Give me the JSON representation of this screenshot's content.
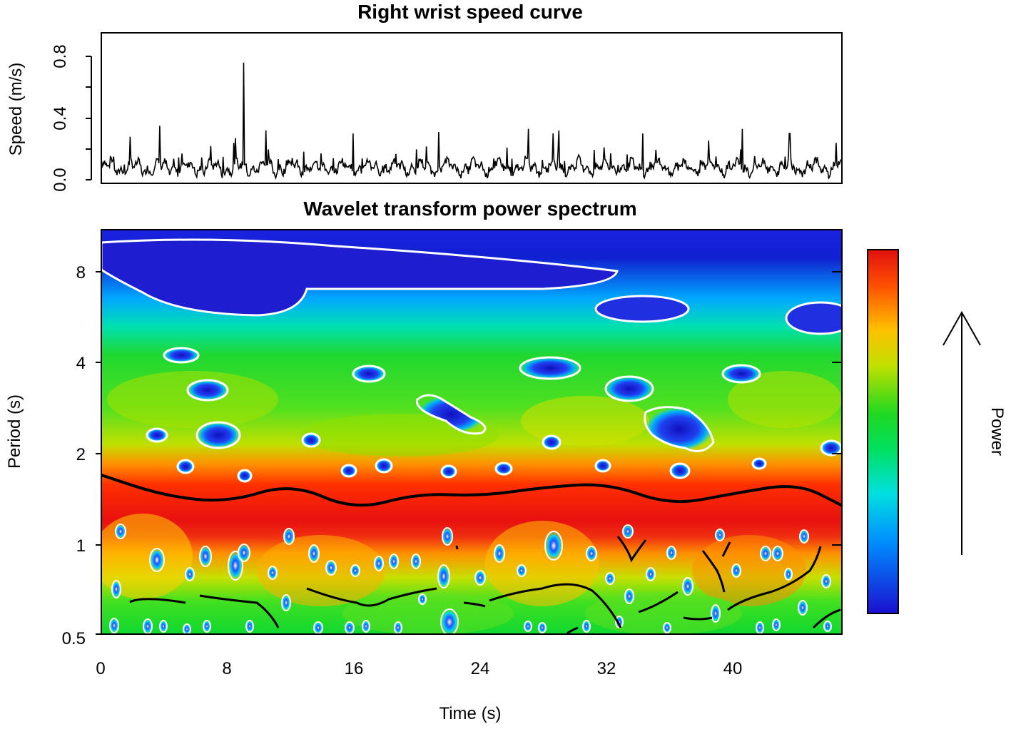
{
  "chart_data": [
    {
      "type": "line",
      "title": "Right wrist speed curve",
      "xlabel": "",
      "ylabel": "Speed (m/s)",
      "xlim": [
        0,
        46.8
      ],
      "ylim": [
        0,
        0.95
      ],
      "yticks": [
        "0.0",
        "0.4",
        "0.8"
      ],
      "series": [
        {
          "name": "",
          "values": {
            "baseline_mean": 0.08,
            "typical_peak_range": [
              0.12,
              0.3
            ],
            "spikes": [
              {
                "x": 3.7,
                "y": 0.35
              },
              {
                "x": 9.0,
                "y": 0.76
              },
              {
                "x": 10.4,
                "y": 0.32
              },
              {
                "x": 15.9,
                "y": 0.3
              },
              {
                "x": 21.3,
                "y": 0.31
              },
              {
                "x": 27.0,
                "y": 0.33
              },
              {
                "x": 28.9,
                "y": 0.32
              },
              {
                "x": 34.2,
                "y": 0.3
              },
              {
                "x": 40.5,
                "y": 0.33
              },
              {
                "x": 43.5,
                "y": 0.3
              }
            ]
          }
        }
      ]
    },
    {
      "type": "heatmap",
      "title": "Wavelet transform power spectrum",
      "xlabel": "Time (s)",
      "ylabel": "Period (s)",
      "xlim": [
        0,
        46.8
      ],
      "ylim": [
        0.5,
        10
      ],
      "yscale": "log2",
      "xticks": [
        "0",
        "8",
        "16",
        "24",
        "32",
        "40"
      ],
      "yticks": [
        "0.5",
        "1",
        "2",
        "4",
        "8"
      ],
      "colorbar_label": "Power",
      "colorscale": [
        "#1a10d0",
        "#00b0ff",
        "#00e5b0",
        "#20d820",
        "#b0e000",
        "#ffc000",
        "#ff5000",
        "#e01010"
      ],
      "dominant_period_ridge": [
        {
          "t": 0,
          "p": 1.7
        },
        {
          "t": 4,
          "p": 1.45
        },
        {
          "t": 8,
          "p": 1.38
        },
        {
          "t": 12,
          "p": 1.6
        },
        {
          "t": 16,
          "p": 1.3
        },
        {
          "t": 20,
          "p": 1.48
        },
        {
          "t": 24,
          "p": 1.45
        },
        {
          "t": 28,
          "p": 1.55
        },
        {
          "t": 32,
          "p": 1.6
        },
        {
          "t": 36,
          "p": 1.35
        },
        {
          "t": 40,
          "p": 1.48
        },
        {
          "t": 44,
          "p": 1.6
        },
        {
          "t": 46.8,
          "p": 1.35
        }
      ]
    }
  ],
  "colorbar": {
    "label": "Power",
    "arrow": "up-arrow"
  }
}
